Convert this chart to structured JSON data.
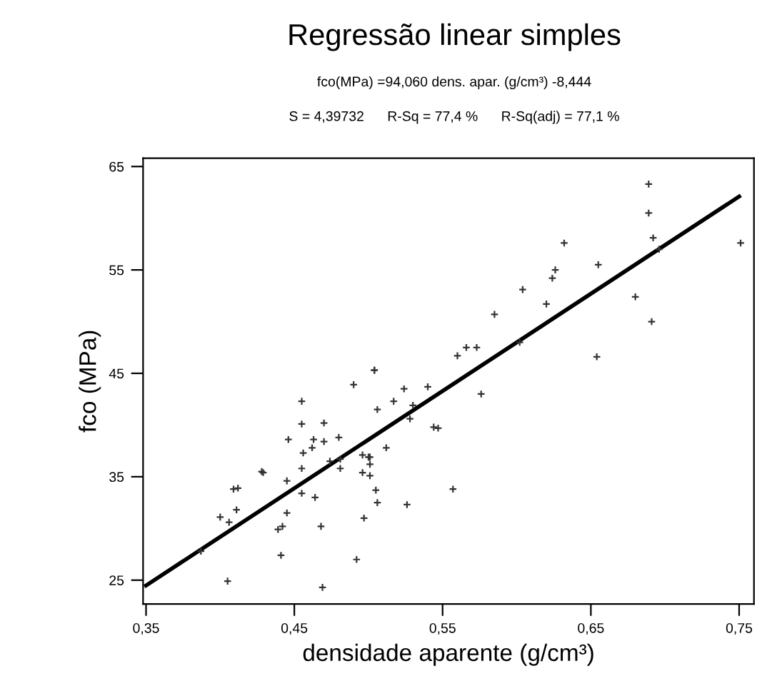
{
  "chart_data": {
    "type": "scatter",
    "title": "Regressão linear simples",
    "subtitle": "fco(MPa) =94,060 dens. apar. (g/cm³) -8,444",
    "annotations": [
      "S = 4,39732      R-Sq = 77,4 %      R-Sq(adj) = 77,1 %"
    ],
    "xlabel": "densidade aparente (g/cm³)",
    "ylabel": "fco (MPa)",
    "xlim": [
      0.348,
      0.76
    ],
    "ylim": [
      22.7,
      65.8
    ],
    "xticks": [
      {
        "value": 0.35,
        "label": "0,35"
      },
      {
        "value": 0.45,
        "label": "0,45"
      },
      {
        "value": 0.55,
        "label": "0,55"
      },
      {
        "value": 0.65,
        "label": "0,65"
      },
      {
        "value": 0.75,
        "label": "0,75"
      }
    ],
    "yticks": [
      25,
      35,
      45,
      55,
      65
    ],
    "grid": false,
    "legend": false,
    "marker": "cross",
    "series": [
      {
        "color": "#333333",
        "x": [
          0.387,
          0.405,
          0.4,
          0.406,
          0.411,
          0.409,
          0.412,
          0.428,
          0.429,
          0.441,
          0.439,
          0.442,
          0.445,
          0.445,
          0.446,
          0.455,
          0.455,
          0.456,
          0.455,
          0.455,
          0.462,
          0.463,
          0.47,
          0.47,
          0.464,
          0.468,
          0.469,
          0.474,
          0.481,
          0.48,
          0.481,
          0.49,
          0.492,
          0.504,
          0.504,
          0.496,
          0.5,
          0.501,
          0.501,
          0.496,
          0.501,
          0.505,
          0.506,
          0.497,
          0.506,
          0.512,
          0.517,
          0.524,
          0.53,
          0.528,
          0.54,
          0.526,
          0.544,
          0.547,
          0.689,
          0.689,
          0.692,
          0.696,
          0.751,
          0.632,
          0.655,
          0.626,
          0.624,
          0.604,
          0.68,
          0.62,
          0.585,
          0.691,
          0.602,
          0.56,
          0.566,
          0.573,
          0.654,
          0.576,
          0.557
        ],
        "values": [
          27.8,
          24.9,
          31.1,
          30.6,
          31.8,
          33.8,
          33.9,
          35.5,
          35.4,
          27.4,
          29.9,
          30.2,
          31.5,
          34.6,
          38.6,
          42.3,
          40.1,
          37.3,
          35.8,
          33.4,
          37.8,
          38.6,
          40.2,
          38.4,
          33.0,
          30.2,
          24.3,
          36.5,
          36.7,
          38.8,
          35.8,
          43.9,
          27.0,
          45.3,
          45.3,
          37.1,
          36.9,
          36.9,
          36.2,
          35.4,
          35.1,
          33.7,
          32.5,
          31.0,
          41.5,
          37.8,
          42.3,
          43.5,
          41.9,
          40.6,
          43.7,
          32.3,
          39.8,
          39.7,
          63.3,
          60.5,
          58.1,
          57.0,
          57.6,
          57.6,
          55.5,
          55.0,
          54.2,
          53.1,
          52.4,
          51.7,
          50.7,
          50.0,
          48.0,
          46.7,
          47.5,
          47.5,
          46.6,
          43.0,
          33.8
        ]
      },
      {
        "type": "line",
        "color": "#000000",
        "marker": "none",
        "line_style": "solid",
        "x": [
          0.35,
          0.75
        ],
        "values": [
          24.48,
          62.1
        ]
      }
    ]
  }
}
